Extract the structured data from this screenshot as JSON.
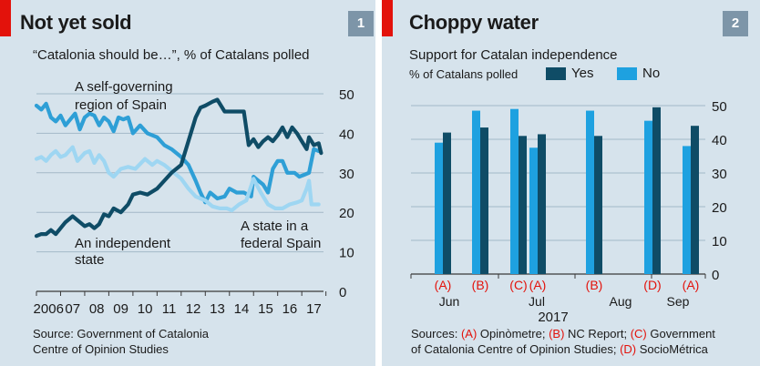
{
  "panel1": {
    "title": "Not yet sold",
    "subtitle": "“Catalonia should be…”, % of Catalans polled",
    "badge": "1",
    "source_line1": "Source: Government of Catalonia",
    "source_line2": "Centre of Opinion Studies"
  },
  "panel2": {
    "title": "Choppy water",
    "subtitle": "Support for Catalan independence",
    "badge": "2",
    "legend_prefix": "% of Catalans polled",
    "sources_label": "Sources:",
    "sources": [
      {
        "letter": "(A)",
        "name": "Opinòmetre;"
      },
      {
        "letter": "(B)",
        "name": "NC Report;"
      },
      {
        "letter": "(C)",
        "name": "Government"
      },
      {
        "letter": "",
        "name": "of Catalonia Centre of Opinion Studies;"
      },
      {
        "letter": "(D)",
        "name": "SocioMétrica"
      }
    ]
  },
  "colors": {
    "independent": "#0f4c66",
    "selfgov": "#2e9fd6",
    "federal": "#9ed6f2",
    "yes": "#0f4c66",
    "no": "#1ea1e0",
    "red": "#e3120b",
    "grid": "#a3b8c7",
    "background": "#d6e3ec"
  },
  "chart_data": [
    {
      "type": "line",
      "ylim": [
        0,
        50
      ],
      "yticks": [
        0,
        10,
        20,
        30,
        40,
        50
      ],
      "xlim": [
        2006.0,
        2017.9
      ],
      "xticks": [
        {
          "value": 2006.5,
          "label": "2006"
        },
        {
          "value": 2007.5,
          "label": "07"
        },
        {
          "value": 2008.5,
          "label": "08"
        },
        {
          "value": 2009.5,
          "label": "09"
        },
        {
          "value": 2010.5,
          "label": "10"
        },
        {
          "value": 2011.5,
          "label": "11"
        },
        {
          "value": 2012.5,
          "label": "12"
        },
        {
          "value": 2013.5,
          "label": "13"
        },
        {
          "value": 2014.5,
          "label": "14"
        },
        {
          "value": 2015.5,
          "label": "15"
        },
        {
          "value": 2016.5,
          "label": "16"
        },
        {
          "value": 2017.5,
          "label": "17"
        }
      ],
      "series": [
        {
          "name": "A self-governing region of Spain",
          "color_key": "selfgov",
          "points": [
            [
              2006.0,
              47
            ],
            [
              2006.2,
              46
            ],
            [
              2006.4,
              47.5
            ],
            [
              2006.6,
              44
            ],
            [
              2006.8,
              43
            ],
            [
              2007.0,
              44.5
            ],
            [
              2007.2,
              42
            ],
            [
              2007.4,
              43.5
            ],
            [
              2007.6,
              45
            ],
            [
              2007.8,
              41
            ],
            [
              2008.0,
              44
            ],
            [
              2008.2,
              45
            ],
            [
              2008.4,
              44.5
            ],
            [
              2008.6,
              42
            ],
            [
              2008.8,
              44
            ],
            [
              2009.0,
              43
            ],
            [
              2009.2,
              40.5
            ],
            [
              2009.4,
              44
            ],
            [
              2009.6,
              43.5
            ],
            [
              2009.8,
              44
            ],
            [
              2010.0,
              40
            ],
            [
              2010.3,
              42
            ],
            [
              2010.6,
              40
            ],
            [
              2011.0,
              39
            ],
            [
              2011.3,
              37
            ],
            [
              2011.6,
              36
            ],
            [
              2012.0,
              34
            ],
            [
              2012.3,
              32
            ],
            [
              2012.6,
              28
            ],
            [
              2012.8,
              25
            ],
            [
              2013.0,
              22.5
            ],
            [
              2013.2,
              25
            ],
            [
              2013.5,
              23.5
            ],
            [
              2013.8,
              24
            ],
            [
              2014.0,
              26
            ],
            [
              2014.3,
              25
            ],
            [
              2014.6,
              25
            ],
            [
              2014.9,
              24
            ],
            [
              2015.0,
              29
            ],
            [
              2015.2,
              28
            ],
            [
              2015.4,
              27
            ],
            [
              2015.6,
              25
            ],
            [
              2015.8,
              31
            ],
            [
              2016.0,
              33
            ],
            [
              2016.2,
              33
            ],
            [
              2016.4,
              30
            ],
            [
              2016.7,
              30
            ],
            [
              2016.9,
              29
            ],
            [
              2017.1,
              29.5
            ],
            [
              2017.3,
              30
            ],
            [
              2017.5,
              36
            ],
            [
              2017.7,
              35.5
            ]
          ]
        },
        {
          "name": "A state in a federal Spain",
          "color_key": "federal",
          "points": [
            [
              2006.0,
              33.5
            ],
            [
              2006.2,
              34
            ],
            [
              2006.4,
              33
            ],
            [
              2006.6,
              34.5
            ],
            [
              2006.8,
              35.5
            ],
            [
              2007.0,
              34
            ],
            [
              2007.2,
              34.5
            ],
            [
              2007.5,
              36.5
            ],
            [
              2007.7,
              33
            ],
            [
              2008.0,
              35
            ],
            [
              2008.2,
              35.5
            ],
            [
              2008.4,
              32.5
            ],
            [
              2008.6,
              34.5
            ],
            [
              2008.8,
              33
            ],
            [
              2009.0,
              30
            ],
            [
              2009.2,
              29
            ],
            [
              2009.5,
              31
            ],
            [
              2009.8,
              31.5
            ],
            [
              2010.1,
              31
            ],
            [
              2010.5,
              33.5
            ],
            [
              2010.8,
              32
            ],
            [
              2011.0,
              33
            ],
            [
              2011.3,
              32
            ],
            [
              2011.7,
              30
            ],
            [
              2012.0,
              28.5
            ],
            [
              2012.3,
              26
            ],
            [
              2012.6,
              24
            ],
            [
              2012.8,
              23.5
            ],
            [
              2013.0,
              23
            ],
            [
              2013.3,
              21.5
            ],
            [
              2013.6,
              21
            ],
            [
              2013.9,
              21
            ],
            [
              2014.1,
              20.5
            ],
            [
              2014.4,
              22
            ],
            [
              2014.7,
              23
            ],
            [
              2015.0,
              28.5
            ],
            [
              2015.3,
              25
            ],
            [
              2015.6,
              22
            ],
            [
              2015.9,
              21
            ],
            [
              2016.2,
              21
            ],
            [
              2016.5,
              22
            ],
            [
              2016.8,
              22.5
            ],
            [
              2017.0,
              23
            ],
            [
              2017.2,
              26
            ],
            [
              2017.3,
              28
            ],
            [
              2017.4,
              22
            ],
            [
              2017.7,
              22
            ]
          ]
        },
        {
          "name": "An independent state",
          "color_key": "independent",
          "points": [
            [
              2006.0,
              14
            ],
            [
              2006.2,
              14.5
            ],
            [
              2006.4,
              14.5
            ],
            [
              2006.6,
              15.5
            ],
            [
              2006.8,
              14.5
            ],
            [
              2007.0,
              16
            ],
            [
              2007.2,
              17.5
            ],
            [
              2007.5,
              19
            ],
            [
              2007.7,
              18
            ],
            [
              2008.0,
              16.5
            ],
            [
              2008.2,
              17
            ],
            [
              2008.4,
              16
            ],
            [
              2008.6,
              17
            ],
            [
              2008.8,
              19.5
            ],
            [
              2009.0,
              19
            ],
            [
              2009.2,
              21
            ],
            [
              2009.5,
              20
            ],
            [
              2009.8,
              22
            ],
            [
              2010.0,
              24.5
            ],
            [
              2010.3,
              25
            ],
            [
              2010.6,
              24.5
            ],
            [
              2011.0,
              26
            ],
            [
              2011.3,
              28
            ],
            [
              2011.6,
              30
            ],
            [
              2012.0,
              32
            ],
            [
              2012.4,
              40
            ],
            [
              2012.6,
              44
            ],
            [
              2012.8,
              46.5
            ],
            [
              2013.0,
              47
            ],
            [
              2013.3,
              48
            ],
            [
              2013.5,
              48.5
            ],
            [
              2013.8,
              45.5
            ],
            [
              2014.0,
              45.5
            ],
            [
              2014.3,
              45.5
            ],
            [
              2014.6,
              45.5
            ],
            [
              2014.8,
              37
            ],
            [
              2015.0,
              38.5
            ],
            [
              2015.2,
              36.5
            ],
            [
              2015.4,
              38
            ],
            [
              2015.6,
              39
            ],
            [
              2015.8,
              38
            ],
            [
              2016.0,
              39.5
            ],
            [
              2016.2,
              41.5
            ],
            [
              2016.4,
              39
            ],
            [
              2016.6,
              41.5
            ],
            [
              2016.8,
              40
            ],
            [
              2017.0,
              38
            ],
            [
              2017.2,
              36
            ],
            [
              2017.3,
              39
            ],
            [
              2017.5,
              37
            ],
            [
              2017.7,
              37.5
            ],
            [
              2017.8,
              35
            ]
          ]
        }
      ],
      "annotations": [
        {
          "text": "A self-governing",
          "series": "selfgov"
        },
        {
          "text": "region of Spain",
          "series": "selfgov"
        },
        {
          "text": "A state in a",
          "series": "federal"
        },
        {
          "text": "federal Spain",
          "series": "federal"
        },
        {
          "text": "An independent",
          "series": "independent"
        },
        {
          "text": "state",
          "series": "independent"
        }
      ]
    },
    {
      "type": "bar",
      "title": "Support for Catalan independence",
      "ylabel": "% of Catalans polled",
      "ylim": [
        0,
        50
      ],
      "yticks": [
        0,
        10,
        20,
        30,
        40,
        50
      ],
      "legend": [
        {
          "name": "Yes",
          "color_key": "yes"
        },
        {
          "name": "No",
          "color_key": "no"
        }
      ],
      "polls": [
        {
          "pollster": "(A)",
          "no": 39,
          "yes": 42
        },
        {
          "pollster": "(B)",
          "no": 48.5,
          "yes": 43.5
        },
        {
          "pollster": "(C)",
          "no": 49,
          "yes": 41
        },
        {
          "pollster": "(A)",
          "no": 37.5,
          "yes": 41.5
        },
        {
          "pollster": "(B)",
          "no": 48.5,
          "yes": 41
        },
        {
          "pollster": "(D)",
          "no": 45.5,
          "yes": 49.5
        },
        {
          "pollster": "(A)",
          "no": 38,
          "yes": 44
        }
      ],
      "months": [
        "Jun",
        "Jul",
        "Aug",
        "Sep"
      ],
      "year": "2017"
    }
  ]
}
